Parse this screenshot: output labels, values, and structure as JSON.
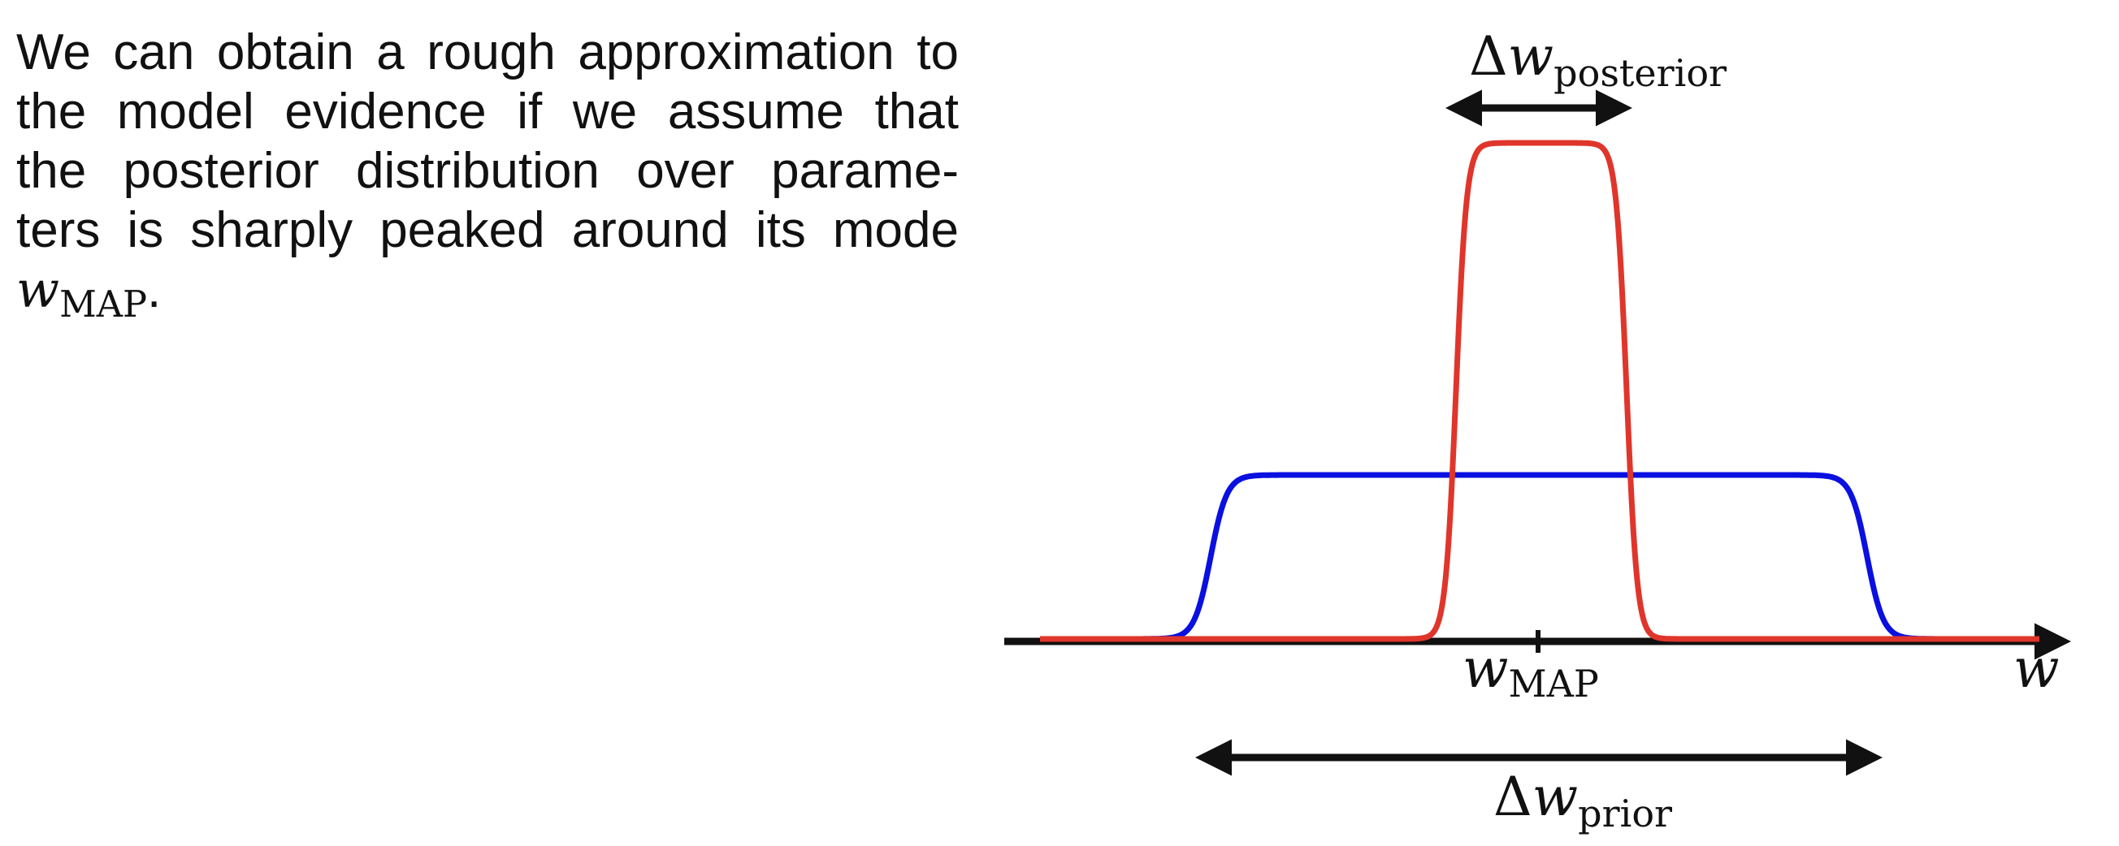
{
  "paragraph": {
    "line_1": "We can obtain a rough approximation to",
    "line_2": "the model evidence if we assume that",
    "line_3": "the posterior distribution over parame-",
    "line_4": "ters is sharply peaked around its mode",
    "math_symbol": "w",
    "math_subscript": "MAP",
    "trailing_period": "."
  },
  "figure": {
    "delta_symbol": "Δ",
    "var_symbol": "w",
    "posterior_subscript": "posterior",
    "prior_subscript": "prior",
    "map_subscript": "MAP",
    "axis_label": "w",
    "colors": {
      "posterior_curve": "#e0352b",
      "prior_curve": "#0a10e0",
      "axis": "#111111",
      "arrows": "#111111"
    }
  }
}
